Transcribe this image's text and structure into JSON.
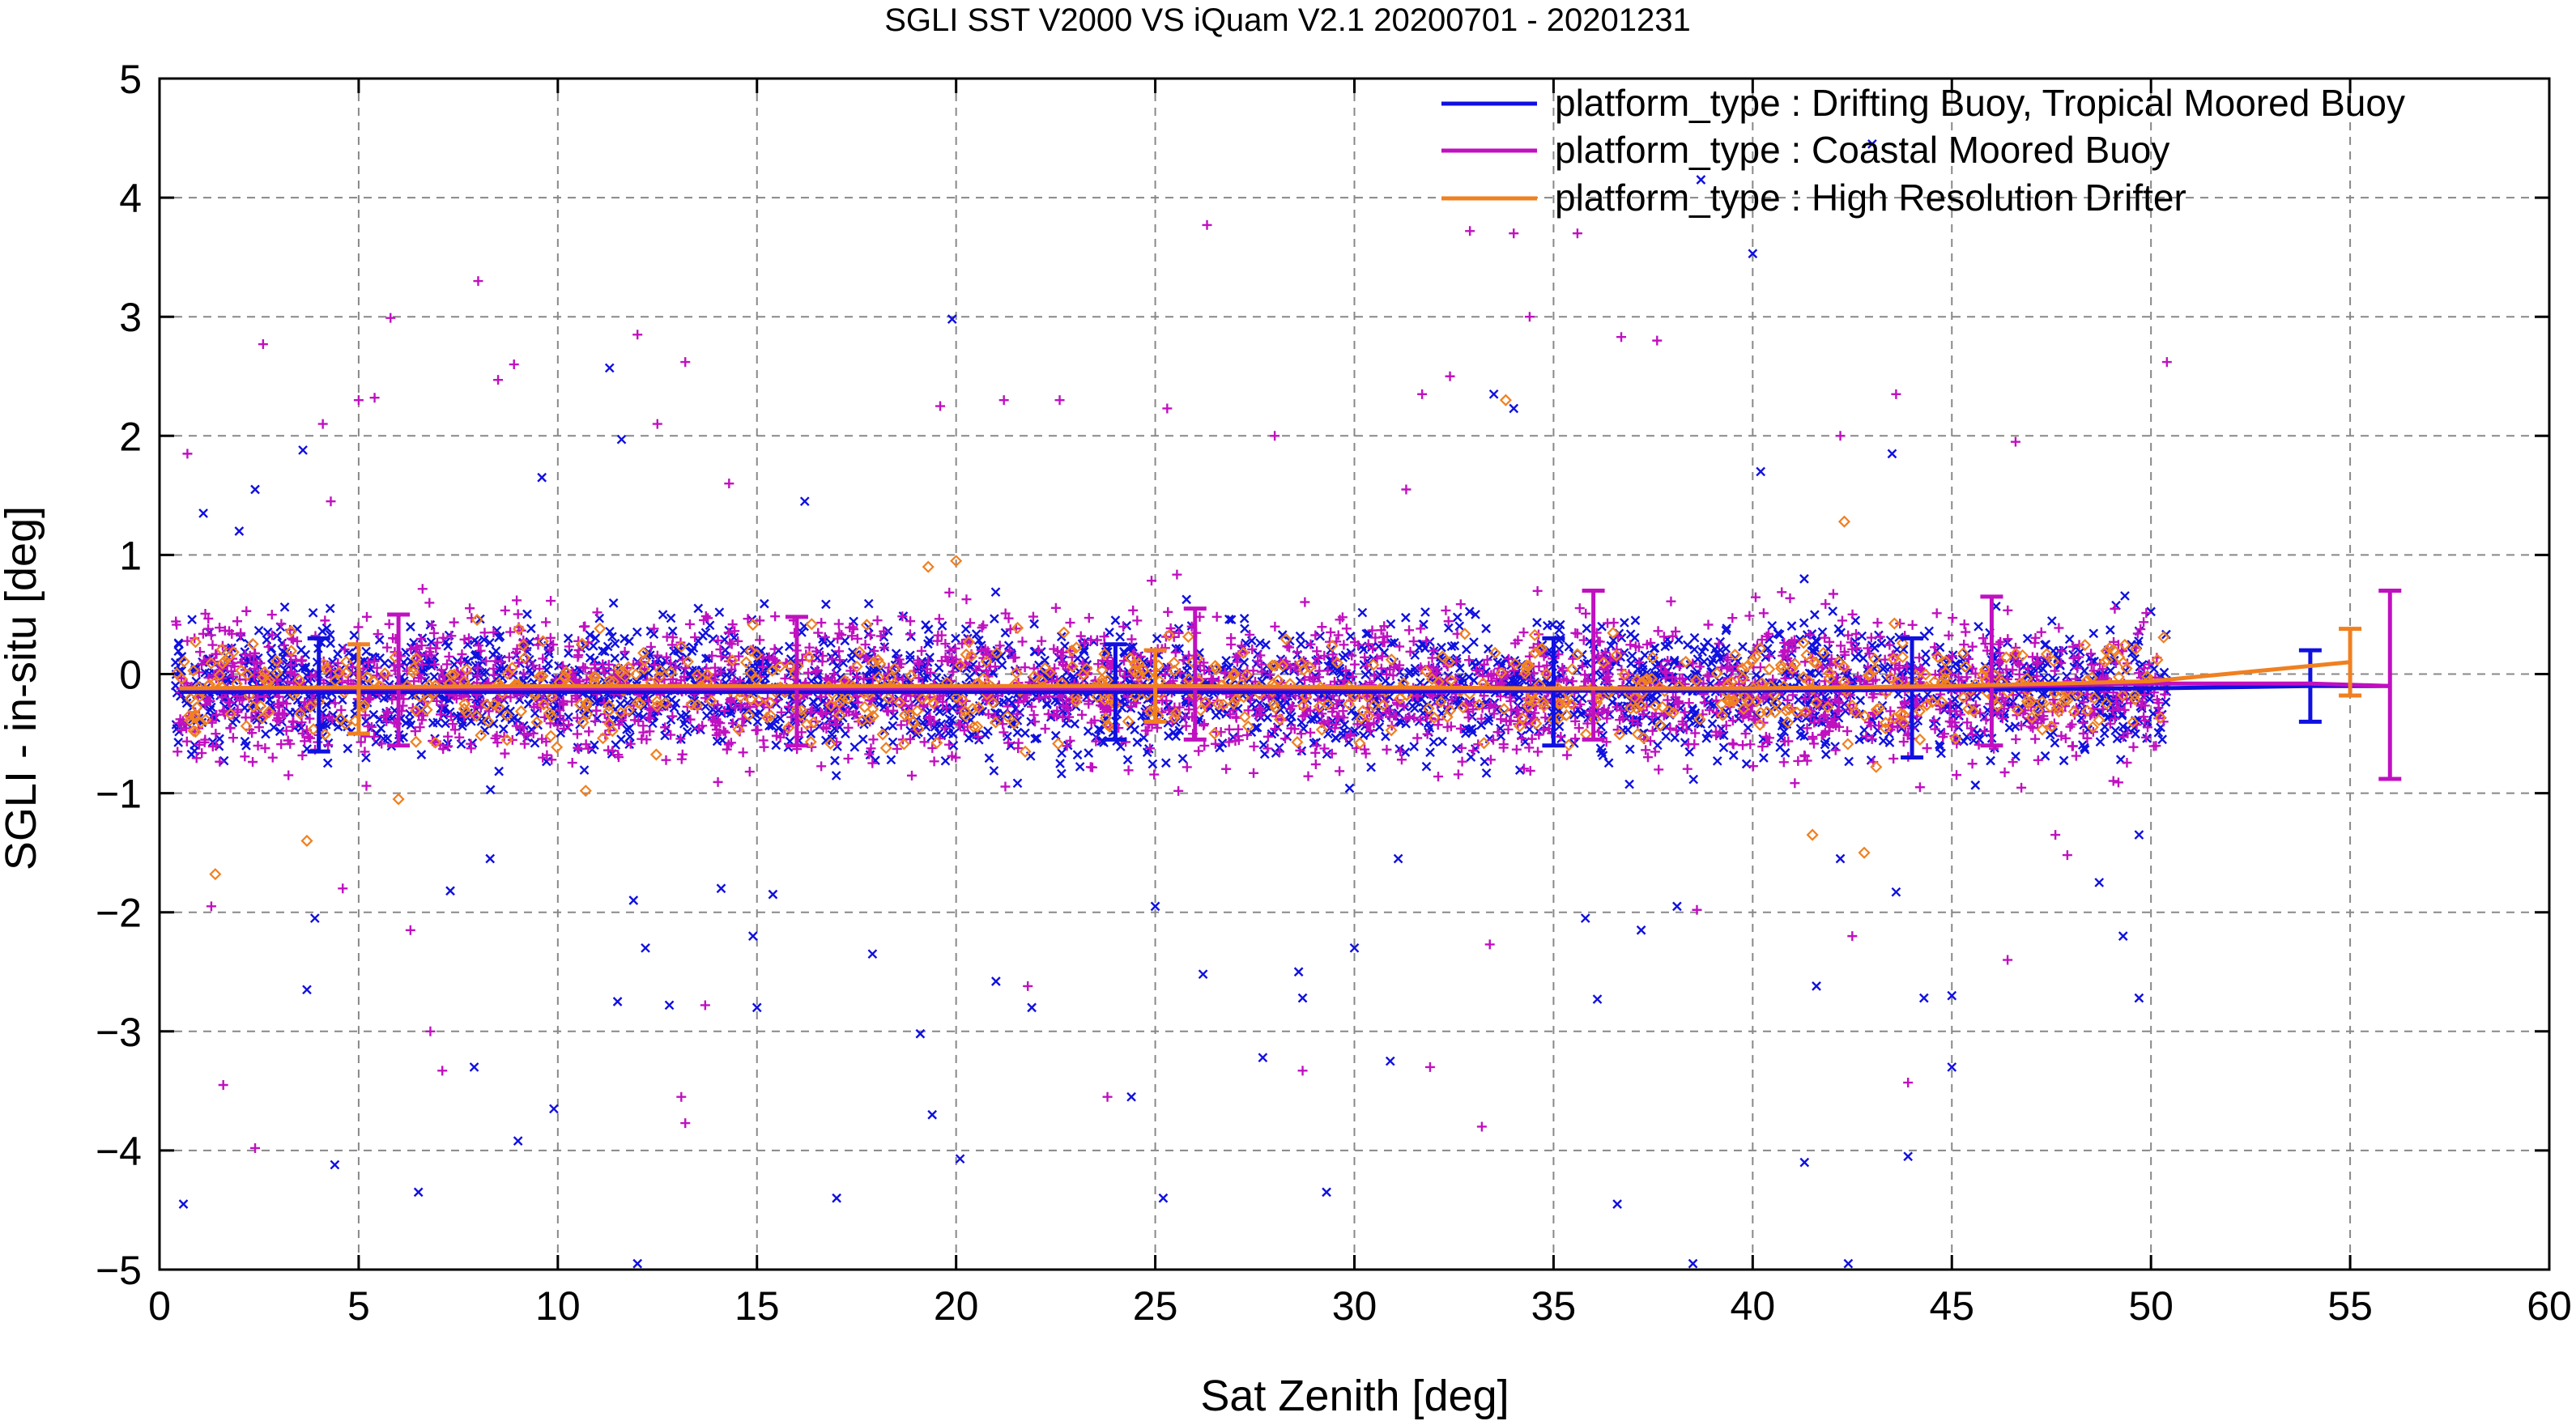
{
  "chart_data": {
    "type": "scatter",
    "title": "SGLI SST V2000 VS iQuam V2.1 20200701 - 20201231",
    "xlabel": "Sat Zenith [deg]",
    "ylabel": "SGLI - in-situ [deg]",
    "xlim": [
      0,
      60
    ],
    "ylim": [
      -5,
      5
    ],
    "x_ticks": [
      0,
      5,
      10,
      15,
      20,
      25,
      30,
      35,
      40,
      45,
      50,
      55,
      60
    ],
    "y_ticks": [
      -5,
      -4,
      -3,
      -2,
      -1,
      0,
      1,
      2,
      3,
      4,
      5
    ],
    "x_tick_labels": [
      "0",
      "5",
      "10",
      "15",
      "20",
      "25",
      "30",
      "35",
      "40",
      "45",
      "50",
      "55",
      "60"
    ],
    "y_tick_labels": [
      "−5",
      "−4",
      "−3",
      "−2",
      "−1",
      "0",
      "1",
      "2",
      "3",
      "4",
      "5"
    ],
    "grid": true,
    "legend_position": "top-right",
    "colors": {
      "drifting": "#1010e0",
      "coastal": "#c010c0",
      "hrd": "#f08020"
    },
    "series": [
      {
        "name": "platform_type : Drifting Buoy, Tropical Moored Buoy",
        "color": "#1010e0",
        "marker": "x",
        "mean_line": {
          "x": [
            0.5,
            5,
            10,
            15,
            20,
            25,
            30,
            35,
            40,
            45,
            50,
            54,
            55,
            56
          ],
          "y": [
            -0.15,
            -0.15,
            -0.15,
            -0.15,
            -0.15,
            -0.15,
            -0.15,
            -0.14,
            -0.14,
            -0.13,
            -0.12,
            -0.1,
            -0.1,
            -0.1
          ]
        },
        "error_bars": [
          {
            "x": 4,
            "mean": -0.15,
            "low": -0.65,
            "high": 0.3
          },
          {
            "x": 24,
            "mean": -0.15,
            "low": -0.55,
            "high": 0.25
          },
          {
            "x": 35,
            "mean": -0.14,
            "low": -0.6,
            "high": 0.3
          },
          {
            "x": 44,
            "mean": -0.13,
            "low": -0.7,
            "high": 0.3
          },
          {
            "x": 54,
            "mean": -0.1,
            "low": -0.4,
            "high": 0.2
          }
        ],
        "outliers": [
          {
            "x": 0.6,
            "y": -4.45
          },
          {
            "x": 1.1,
            "y": 1.35
          },
          {
            "x": 2.0,
            "y": 1.2
          },
          {
            "x": 2.4,
            "y": 1.55
          },
          {
            "x": 3.6,
            "y": 1.88
          },
          {
            "x": 3.7,
            "y": -2.65
          },
          {
            "x": 3.9,
            "y": -2.05
          },
          {
            "x": 4.4,
            "y": -4.12
          },
          {
            "x": 6.5,
            "y": -4.35
          },
          {
            "x": 7.3,
            "y": -1.82
          },
          {
            "x": 7.9,
            "y": -3.3
          },
          {
            "x": 8.3,
            "y": -1.55
          },
          {
            "x": 9.0,
            "y": -3.92
          },
          {
            "x": 9.6,
            "y": 1.65
          },
          {
            "x": 9.9,
            "y": -3.65
          },
          {
            "x": 11.3,
            "y": 2.57
          },
          {
            "x": 11.5,
            "y": -2.75
          },
          {
            "x": 11.6,
            "y": 1.97
          },
          {
            "x": 12.0,
            "y": -4.95
          },
          {
            "x": 11.9,
            "y": -1.9
          },
          {
            "x": 12.2,
            "y": -2.3
          },
          {
            "x": 12.8,
            "y": -2.78
          },
          {
            "x": 14.1,
            "y": -1.8
          },
          {
            "x": 14.9,
            "y": -2.2
          },
          {
            "x": 15.0,
            "y": -2.8
          },
          {
            "x": 15.4,
            "y": -1.85
          },
          {
            "x": 16.2,
            "y": 1.45
          },
          {
            "x": 17.0,
            "y": -4.4
          },
          {
            "x": 17.9,
            "y": -2.35
          },
          {
            "x": 19.1,
            "y": -3.02
          },
          {
            "x": 19.4,
            "y": -3.7
          },
          {
            "x": 19.9,
            "y": 2.98
          },
          {
            "x": 20.1,
            "y": -4.07
          },
          {
            "x": 21.0,
            "y": -2.58
          },
          {
            "x": 21.9,
            "y": -2.8
          },
          {
            "x": 24.4,
            "y": -3.55
          },
          {
            "x": 25.0,
            "y": -1.95
          },
          {
            "x": 25.2,
            "y": -4.4
          },
          {
            "x": 26.2,
            "y": -2.52
          },
          {
            "x": 27.7,
            "y": -3.22
          },
          {
            "x": 28.6,
            "y": -2.5
          },
          {
            "x": 28.7,
            "y": -2.72
          },
          {
            "x": 29.3,
            "y": -4.35
          },
          {
            "x": 30.0,
            "y": -2.3
          },
          {
            "x": 30.9,
            "y": -3.25
          },
          {
            "x": 31.1,
            "y": -1.55
          },
          {
            "x": 33.5,
            "y": 2.35
          },
          {
            "x": 35.8,
            "y": -2.05
          },
          {
            "x": 36.1,
            "y": -2.73
          },
          {
            "x": 36.6,
            "y": -4.45
          },
          {
            "x": 37.2,
            "y": -2.15
          },
          {
            "x": 38.1,
            "y": -1.95
          },
          {
            "x": 38.5,
            "y": -4.95
          },
          {
            "x": 38.7,
            "y": 4.15
          },
          {
            "x": 40.0,
            "y": 3.53
          },
          {
            "x": 41.3,
            "y": -4.1
          },
          {
            "x": 41.6,
            "y": -2.62
          },
          {
            "x": 42.2,
            "y": -1.55
          },
          {
            "x": 42.4,
            "y": -4.95
          },
          {
            "x": 43.0,
            "y": 4.45
          },
          {
            "x": 43.6,
            "y": -1.83
          },
          {
            "x": 43.9,
            "y": -4.05
          },
          {
            "x": 44.3,
            "y": -2.72
          },
          {
            "x": 45.0,
            "y": -3.3
          },
          {
            "x": 45.0,
            "y": -2.7
          },
          {
            "x": 48.7,
            "y": -1.75
          },
          {
            "x": 49.3,
            "y": -2.2
          },
          {
            "x": 49.7,
            "y": -2.72
          },
          {
            "x": 49.7,
            "y": -1.35
          },
          {
            "x": 34.0,
            "y": 2.23
          },
          {
            "x": 43.5,
            "y": 1.85
          },
          {
            "x": 40.2,
            "y": 1.7
          }
        ]
      },
      {
        "name": "platform_type : Coastal Moored Buoy",
        "color": "#c010c0",
        "marker": "+",
        "mean_line": {
          "x": [
            0.5,
            5,
            10,
            15,
            20,
            25,
            30,
            35,
            40,
            45,
            50,
            54,
            56
          ],
          "y": [
            -0.12,
            -0.12,
            -0.12,
            -0.12,
            -0.12,
            -0.12,
            -0.12,
            -0.12,
            -0.12,
            -0.11,
            -0.08,
            -0.08,
            -0.1
          ]
        },
        "error_bars": [
          {
            "x": 6,
            "mean": -0.12,
            "low": -0.6,
            "high": 0.5
          },
          {
            "x": 16,
            "mean": -0.12,
            "low": -0.6,
            "high": 0.48
          },
          {
            "x": 26,
            "mean": -0.12,
            "low": -0.55,
            "high": 0.55
          },
          {
            "x": 36,
            "mean": -0.12,
            "low": -0.55,
            "high": 0.7
          },
          {
            "x": 46,
            "mean": -0.11,
            "low": -0.6,
            "high": 0.65
          },
          {
            "x": 56,
            "mean": -0.1,
            "low": -0.88,
            "high": 0.7
          }
        ],
        "outliers": [
          {
            "x": 0.7,
            "y": 1.85
          },
          {
            "x": 1.3,
            "y": -1.95
          },
          {
            "x": 1.6,
            "y": -3.45
          },
          {
            "x": 2.4,
            "y": -3.98
          },
          {
            "x": 2.6,
            "y": 2.77
          },
          {
            "x": 4.1,
            "y": 2.1
          },
          {
            "x": 4.3,
            "y": 1.45
          },
          {
            "x": 4.6,
            "y": -1.8
          },
          {
            "x": 5.0,
            "y": 2.3
          },
          {
            "x": 5.4,
            "y": 2.32
          },
          {
            "x": 5.8,
            "y": 2.99
          },
          {
            "x": 6.3,
            "y": -2.15
          },
          {
            "x": 6.8,
            "y": -3.0
          },
          {
            "x": 7.1,
            "y": -3.33
          },
          {
            "x": 8.0,
            "y": 3.3
          },
          {
            "x": 8.5,
            "y": 2.47
          },
          {
            "x": 8.9,
            "y": 2.6
          },
          {
            "x": 12.0,
            "y": 2.85
          },
          {
            "x": 12.5,
            "y": 2.1
          },
          {
            "x": 13.2,
            "y": 2.62
          },
          {
            "x": 13.1,
            "y": -3.55
          },
          {
            "x": 13.2,
            "y": -3.77
          },
          {
            "x": 13.7,
            "y": -2.78
          },
          {
            "x": 14.3,
            "y": 1.6
          },
          {
            "x": 19.6,
            "y": 2.25
          },
          {
            "x": 21.2,
            "y": 2.3
          },
          {
            "x": 21.8,
            "y": -2.62
          },
          {
            "x": 22.6,
            "y": 2.3
          },
          {
            "x": 23.8,
            "y": -3.55
          },
          {
            "x": 25.3,
            "y": 2.23
          },
          {
            "x": 26.3,
            "y": 3.77
          },
          {
            "x": 28.0,
            "y": 2.0
          },
          {
            "x": 28.7,
            "y": -3.33
          },
          {
            "x": 31.3,
            "y": 1.55
          },
          {
            "x": 31.7,
            "y": 2.35
          },
          {
            "x": 31.9,
            "y": -3.3
          },
          {
            "x": 32.4,
            "y": 2.5
          },
          {
            "x": 32.9,
            "y": 3.72
          },
          {
            "x": 33.2,
            "y": -3.8
          },
          {
            "x": 33.4,
            "y": -2.27
          },
          {
            "x": 34.0,
            "y": 3.7
          },
          {
            "x": 34.4,
            "y": 3.0
          },
          {
            "x": 35.6,
            "y": 3.7
          },
          {
            "x": 36.7,
            "y": 2.83
          },
          {
            "x": 37.6,
            "y": 2.8
          },
          {
            "x": 38.6,
            "y": -1.98
          },
          {
            "x": 42.2,
            "y": 2.0
          },
          {
            "x": 42.5,
            "y": -2.2
          },
          {
            "x": 43.6,
            "y": 2.35
          },
          {
            "x": 43.9,
            "y": -3.43
          },
          {
            "x": 46.4,
            "y": -2.4
          },
          {
            "x": 47.9,
            "y": -1.52
          },
          {
            "x": 50.4,
            "y": 2.62
          },
          {
            "x": 46.6,
            "y": 1.95
          },
          {
            "x": 44.2,
            "y": -0.95
          },
          {
            "x": 47.6,
            "y": -1.35
          }
        ]
      },
      {
        "name": "platform_type : High Resolution Drifter",
        "color": "#f08020",
        "marker": "diamond",
        "mean_line": {
          "x": [
            0.5,
            5,
            10,
            15,
            20,
            25,
            30,
            35,
            40,
            45,
            50,
            55
          ],
          "y": [
            -0.12,
            -0.11,
            -0.1,
            -0.1,
            -0.1,
            -0.1,
            -0.11,
            -0.12,
            -0.12,
            -0.1,
            -0.06,
            0.1
          ]
        },
        "error_bars": [
          {
            "x": 5,
            "mean": -0.11,
            "low": -0.5,
            "high": 0.25
          },
          {
            "x": 25,
            "mean": -0.1,
            "low": -0.4,
            "high": 0.2
          },
          {
            "x": 55,
            "mean": 0.1,
            "low": -0.18,
            "high": 0.38
          }
        ],
        "outliers": [
          {
            "x": 1.4,
            "y": -1.68
          },
          {
            "x": 3.7,
            "y": -1.4
          },
          {
            "x": 33.8,
            "y": 2.3
          },
          {
            "x": 41.5,
            "y": -1.35
          },
          {
            "x": 42.8,
            "y": -1.5
          },
          {
            "x": 42.3,
            "y": 1.28
          },
          {
            "x": 20.0,
            "y": 0.95
          },
          {
            "x": 19.3,
            "y": 0.9
          },
          {
            "x": 6.0,
            "y": -1.05
          },
          {
            "x": 10.7,
            "y": -0.98
          },
          {
            "x": 43.1,
            "y": -0.78
          },
          {
            "x": 44.2,
            "y": -0.55
          }
        ]
      }
    ]
  }
}
